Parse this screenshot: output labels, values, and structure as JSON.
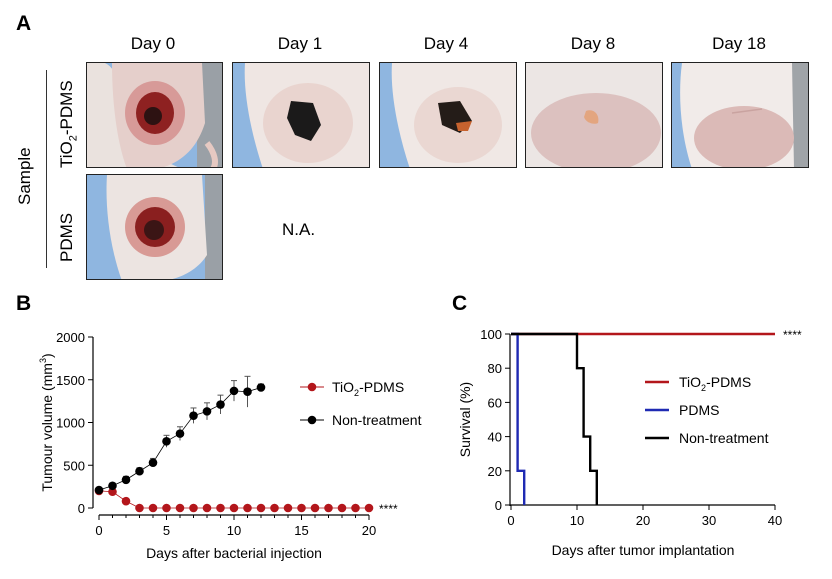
{
  "panelA": {
    "letter": "A",
    "days": [
      "Day 0",
      "Day 1",
      "Day 4",
      "Day 8",
      "Day 18"
    ],
    "sample_label": "Sample",
    "row1_label_main": "TiO",
    "row1_label_sub": "2",
    "row1_label_rest": "-PDMS",
    "row2_label": "PDMS",
    "na_label": "N.A."
  },
  "panelB_letter": "B",
  "panelC_letter": "C",
  "chart_data": [
    {
      "type": "line",
      "panel": "B",
      "xlabel": "Days after bacterial injection",
      "ylabel": "Tumour volume (mm3)",
      "xlim": [
        0,
        20
      ],
      "ylim": [
        0,
        2000
      ],
      "xticks": [
        0,
        5,
        10,
        15,
        20
      ],
      "yticks": [
        0,
        500,
        1000,
        1500,
        2000
      ],
      "significance": "****",
      "legend_position": "right",
      "series": [
        {
          "name": "TiO2-PDMS",
          "color": "#b3161b",
          "x": [
            0,
            1,
            2,
            3,
            4,
            5,
            6,
            7,
            8,
            9,
            10,
            11,
            12,
            13,
            14,
            15,
            16,
            17,
            18,
            19,
            20
          ],
          "y": [
            200,
            190,
            80,
            0,
            0,
            0,
            0,
            0,
            0,
            0,
            0,
            0,
            0,
            0,
            0,
            0,
            0,
            0,
            0,
            0,
            0
          ],
          "err": [
            40,
            40,
            30,
            0,
            0,
            0,
            0,
            0,
            0,
            0,
            0,
            0,
            0,
            0,
            0,
            0,
            0,
            0,
            0,
            0,
            0
          ]
        },
        {
          "name": "Non-treatment",
          "color": "#000000",
          "x": [
            0,
            1,
            2,
            3,
            4,
            5,
            6,
            7,
            8,
            9,
            10,
            11,
            12
          ],
          "y": [
            210,
            260,
            330,
            430,
            530,
            780,
            870,
            1080,
            1130,
            1210,
            1370,
            1360,
            1410
          ],
          "err": [
            30,
            30,
            40,
            40,
            50,
            70,
            80,
            90,
            100,
            110,
            120,
            180,
            40
          ]
        }
      ]
    },
    {
      "type": "line",
      "panel": "C",
      "xlabel": "Days after tumor implantation",
      "ylabel": "Survival (%)",
      "xlim": [
        0,
        40
      ],
      "ylim": [
        0,
        100
      ],
      "xticks": [
        0,
        10,
        20,
        30,
        40
      ],
      "yticks": [
        0,
        20,
        40,
        60,
        80,
        100
      ],
      "significance": "****",
      "legend_position": "right",
      "series": [
        {
          "name": "TiO2-PDMS",
          "color": "#b3161b",
          "x": [
            0,
            40
          ],
          "y": [
            100,
            100
          ]
        },
        {
          "name": "PDMS",
          "color": "#1f2ab3",
          "x": [
            0,
            1,
            1,
            2,
            2
          ],
          "y": [
            100,
            100,
            20,
            20,
            0
          ]
        },
        {
          "name": "Non-treatment",
          "color": "#000000",
          "x": [
            0,
            10,
            10,
            11,
            11,
            12,
            12,
            13,
            13
          ],
          "y": [
            100,
            100,
            80,
            80,
            40,
            40,
            20,
            20,
            0
          ]
        }
      ]
    }
  ]
}
